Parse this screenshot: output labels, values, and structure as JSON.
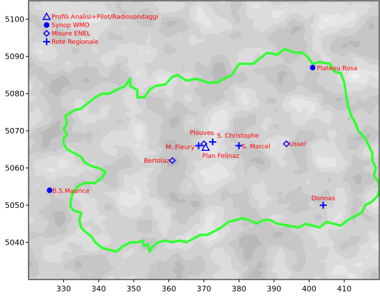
{
  "colors": {
    "border": "#33ff33",
    "marker": "#0000ff",
    "label": "#ff0000"
  },
  "legend": [
    {
      "symbol": "triangle",
      "label": "Profili Analisi+Pilot/Radiosondaggi"
    },
    {
      "symbol": "circle",
      "label": "Synop WMO"
    },
    {
      "symbol": "diamond",
      "label": "Misure ENEL"
    },
    {
      "symbol": "plus",
      "label": "Rete Regionale"
    }
  ],
  "chart_data": {
    "type": "scatter",
    "xlim": [
      320,
      420
    ],
    "ylim": [
      5030,
      5105
    ],
    "xticks": [
      330,
      340,
      350,
      360,
      370,
      380,
      390,
      400,
      410
    ],
    "yticks": [
      5040,
      5050,
      5060,
      5070,
      5080,
      5090,
      5100
    ],
    "xtick_labels": [
      "330",
      "340",
      "350",
      "360",
      "370",
      "380",
      "390",
      "400",
      "410"
    ],
    "ytick_labels": [
      "5040",
      "5050",
      "5060",
      "5070",
      "5080",
      "5090",
      "5100"
    ],
    "stations": [
      {
        "label": "Plateau Rosa",
        "x": 401.0,
        "y": 5087.0,
        "symbol": "circle"
      },
      {
        "label": "S. Christophe",
        "x": 372.5,
        "y": 5067.0,
        "symbol": "plus"
      },
      {
        "label": "Plouves",
        "x": 370.0,
        "y": 5066.5,
        "symbol": "diamond"
      },
      {
        "label": "M. Fleury",
        "x": 368.5,
        "y": 5066.0,
        "symbol": "plus"
      },
      {
        "label": "Plan Felinaz",
        "x": 370.5,
        "y": 5065.5,
        "symbol": "triangle"
      },
      {
        "label": "S. Marcel",
        "x": 380.0,
        "y": 5066.0,
        "symbol": "plus"
      },
      {
        "label": "Ussel",
        "x": 393.5,
        "y": 5066.5,
        "symbol": "diamond"
      },
      {
        "label": "Bertolaz",
        "x": 361.0,
        "y": 5062.0,
        "symbol": "diamond"
      },
      {
        "label": "B.S.Maurice",
        "x": 326.0,
        "y": 5054.0,
        "symbol": "circle"
      },
      {
        "label": "Donnas",
        "x": 404.0,
        "y": 5050.0,
        "symbol": "plus"
      }
    ],
    "border": [
      [
        347.5,
        5082
      ],
      [
        349,
        5084
      ],
      [
        349,
        5082
      ],
      [
        351,
        5081
      ],
      [
        351,
        5079
      ],
      [
        353,
        5079
      ],
      [
        354.5,
        5081
      ],
      [
        356,
        5082
      ],
      [
        359,
        5082.5
      ],
      [
        361,
        5084.5
      ],
      [
        362.5,
        5085
      ],
      [
        365,
        5083.5
      ],
      [
        368,
        5084
      ],
      [
        371,
        5083
      ],
      [
        374,
        5083
      ],
      [
        375.5,
        5084
      ],
      [
        378,
        5085
      ],
      [
        380,
        5088
      ],
      [
        384,
        5088
      ],
      [
        386,
        5089.5
      ],
      [
        388,
        5091
      ],
      [
        391,
        5090.5
      ],
      [
        393,
        5092
      ],
      [
        396,
        5091
      ],
      [
        398,
        5091
      ],
      [
        399.5,
        5090
      ],
      [
        401,
        5088
      ],
      [
        403,
        5088.5
      ],
      [
        406,
        5088
      ],
      [
        407,
        5086
      ],
      [
        409,
        5085.5
      ],
      [
        410,
        5083
      ],
      [
        410.5,
        5080
      ],
      [
        411,
        5077
      ],
      [
        412,
        5074
      ],
      [
        413,
        5072.5
      ],
      [
        414,
        5070
      ],
      [
        416,
        5068
      ],
      [
        417,
        5066
      ],
      [
        418,
        5064
      ],
      [
        418,
        5062
      ],
      [
        419,
        5060
      ],
      [
        418.5,
        5058
      ],
      [
        420,
        5056
      ],
      [
        420,
        5054
      ],
      [
        419.5,
        5052.5
      ],
      [
        418,
        5051
      ],
      [
        416,
        5050
      ],
      [
        415,
        5048
      ],
      [
        413,
        5047
      ],
      [
        411,
        5046
      ],
      [
        409,
        5044.5
      ],
      [
        407,
        5045
      ],
      [
        405,
        5045.5
      ],
      [
        403,
        5044
      ],
      [
        401,
        5044.5
      ],
      [
        399,
        5045
      ],
      [
        397,
        5044
      ],
      [
        394,
        5044.5
      ],
      [
        391,
        5045
      ],
      [
        389,
        5046
      ],
      [
        387,
        5046
      ],
      [
        385,
        5045
      ],
      [
        383,
        5046
      ],
      [
        381,
        5046.5
      ],
      [
        379,
        5046
      ],
      [
        377,
        5045.5
      ],
      [
        375,
        5044
      ],
      [
        373,
        5043
      ],
      [
        371,
        5042
      ],
      [
        369,
        5042
      ],
      [
        367,
        5041
      ],
      [
        365,
        5040
      ],
      [
        363,
        5040.5
      ],
      [
        361,
        5040
      ],
      [
        359,
        5040.5
      ],
      [
        357,
        5040
      ],
      [
        355.5,
        5039
      ],
      [
        354.5,
        5037.5
      ],
      [
        354,
        5039.5
      ],
      [
        353,
        5039
      ],
      [
        352.5,
        5040.5
      ],
      [
        351,
        5040
      ],
      [
        349,
        5040
      ],
      [
        347,
        5039
      ],
      [
        345,
        5037.5
      ],
      [
        343,
        5038
      ],
      [
        341,
        5038.5
      ],
      [
        339,
        5040
      ],
      [
        338,
        5041.5
      ],
      [
        336,
        5043
      ],
      [
        335,
        5044
      ],
      [
        334.5,
        5046
      ],
      [
        335,
        5048
      ],
      [
        333,
        5048.5
      ],
      [
        332,
        5049.5
      ],
      [
        332,
        5051
      ],
      [
        332.5,
        5053
      ],
      [
        334,
        5055
      ],
      [
        336,
        5056
      ],
      [
        339,
        5056
      ],
      [
        341,
        5057.5
      ],
      [
        342,
        5059
      ],
      [
        340,
        5060
      ],
      [
        338,
        5060.5
      ],
      [
        336,
        5061.5
      ],
      [
        335,
        5063
      ],
      [
        333,
        5064
      ],
      [
        331,
        5065
      ],
      [
        330,
        5066.5
      ],
      [
        330,
        5068
      ],
      [
        331,
        5069
      ],
      [
        330,
        5070.5
      ],
      [
        331,
        5072
      ],
      [
        330.5,
        5074
      ],
      [
        333,
        5075.5
      ],
      [
        335,
        5076
      ],
      [
        337,
        5077.5
      ],
      [
        339,
        5079
      ],
      [
        341,
        5080
      ],
      [
        343,
        5080
      ],
      [
        345,
        5081
      ],
      [
        347.5,
        5082
      ]
    ]
  }
}
